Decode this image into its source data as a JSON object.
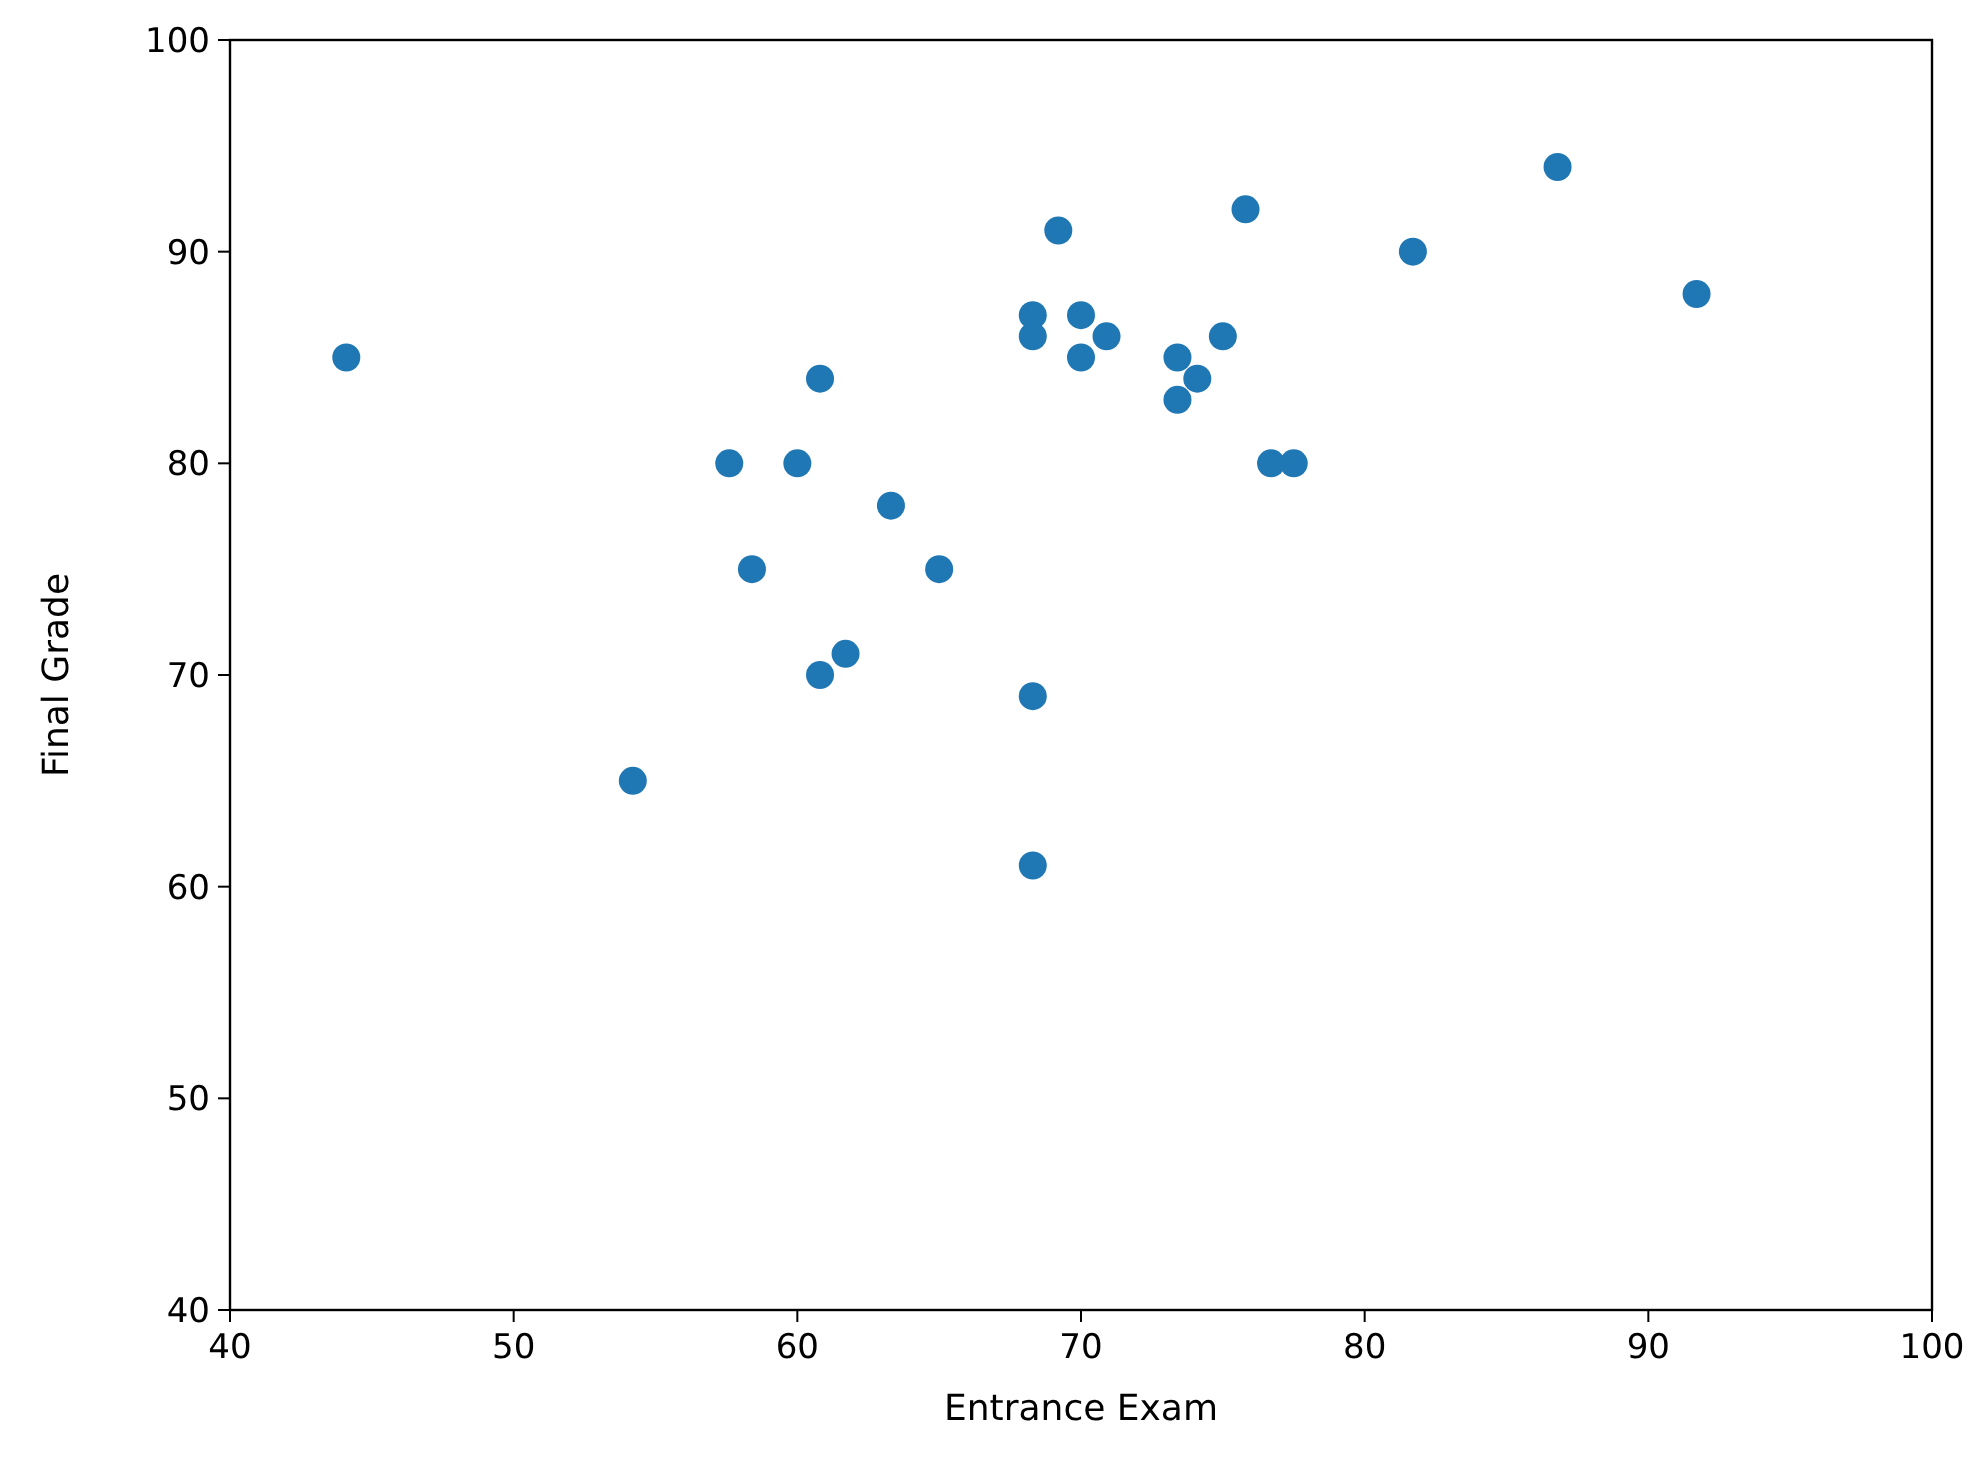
{
  "chart_data": {
    "type": "scatter",
    "xlabel": "Entrance Exam",
    "ylabel": "Final Grade",
    "xlim": [
      40,
      100
    ],
    "ylim": [
      40,
      100
    ],
    "xticks": [
      40,
      50,
      60,
      70,
      80,
      90,
      100
    ],
    "yticks": [
      40,
      50,
      60,
      70,
      80,
      90,
      100
    ],
    "marker": "circle",
    "grid": false,
    "series": [
      {
        "color": "#1f77b4",
        "x": [
          44.1,
          57.6,
          58.4,
          60.0,
          60.8,
          60.8,
          61.7,
          63.3,
          65.0,
          54.2,
          68.3,
          68.3,
          68.3,
          68.3,
          69.2,
          70.0,
          70.0,
          70.9,
          73.4,
          73.4,
          74.1,
          75.0,
          75.8,
          76.7,
          77.5,
          81.7,
          86.8,
          91.7
        ],
        "values": [
          85,
          80,
          75,
          80,
          84,
          70,
          71,
          78,
          75,
          65,
          87,
          86,
          69,
          61,
          91,
          87,
          85,
          86,
          85,
          83,
          84,
          86,
          92,
          80,
          80,
          90,
          94,
          88
        ]
      }
    ]
  }
}
